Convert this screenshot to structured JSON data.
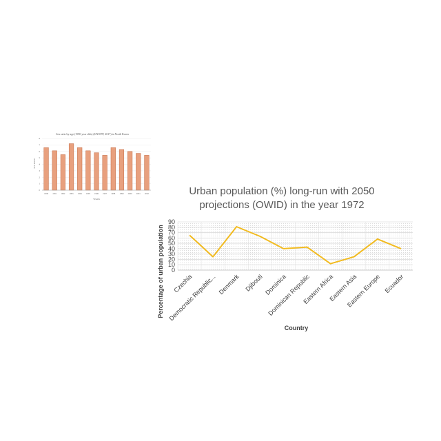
{
  "chart_data": [
    {
      "type": "bar",
      "title": "Sex ratio by age (1990 year olds) (UNWPP, 2017) in North Korea",
      "xlabel": "YEARS",
      "ylabel": "SEX RATIO",
      "categories": [
        "1990",
        "1991",
        "1992",
        "1993",
        "1994",
        "1995",
        "1996",
        "1997",
        "1998",
        "1999",
        "2000",
        "2001",
        "2002"
      ],
      "values": [
        6.6,
        6.1,
        5.5,
        7.2,
        6.6,
        6.1,
        5.8,
        5.4,
        6.6,
        6.3,
        6.0,
        5.7,
        5.4
      ],
      "ylim": [
        0,
        8
      ],
      "yticks": [
        "0",
        "1",
        "2",
        "3",
        "4",
        "5",
        "6",
        "7",
        "8"
      ],
      "bar_color": "#e8a07e",
      "bar_edge": "#c26b45"
    },
    {
      "type": "line",
      "title": "Urban population (%) long-run with 2050 projections (OWID) in the year 1972",
      "xlabel": "Country",
      "ylabel": "Percentage of urban population",
      "categories": [
        "Czechia",
        "Democratic Republic...",
        "Denmark",
        "Djibouti",
        "Dominica",
        "Dominican Republic",
        "Eastern Africa",
        "Eastern Asia",
        "Eastern Europe",
        "Ecuador"
      ],
      "values": [
        65,
        25,
        81,
        63,
        40,
        43,
        12,
        25,
        58,
        40
      ],
      "ylim": [
        0,
        90
      ],
      "yticks": [
        "0",
        "10",
        "20",
        "30",
        "40",
        "50",
        "60",
        "70",
        "80",
        "90"
      ],
      "line_color": "#f2bb20",
      "grid": true
    }
  ]
}
